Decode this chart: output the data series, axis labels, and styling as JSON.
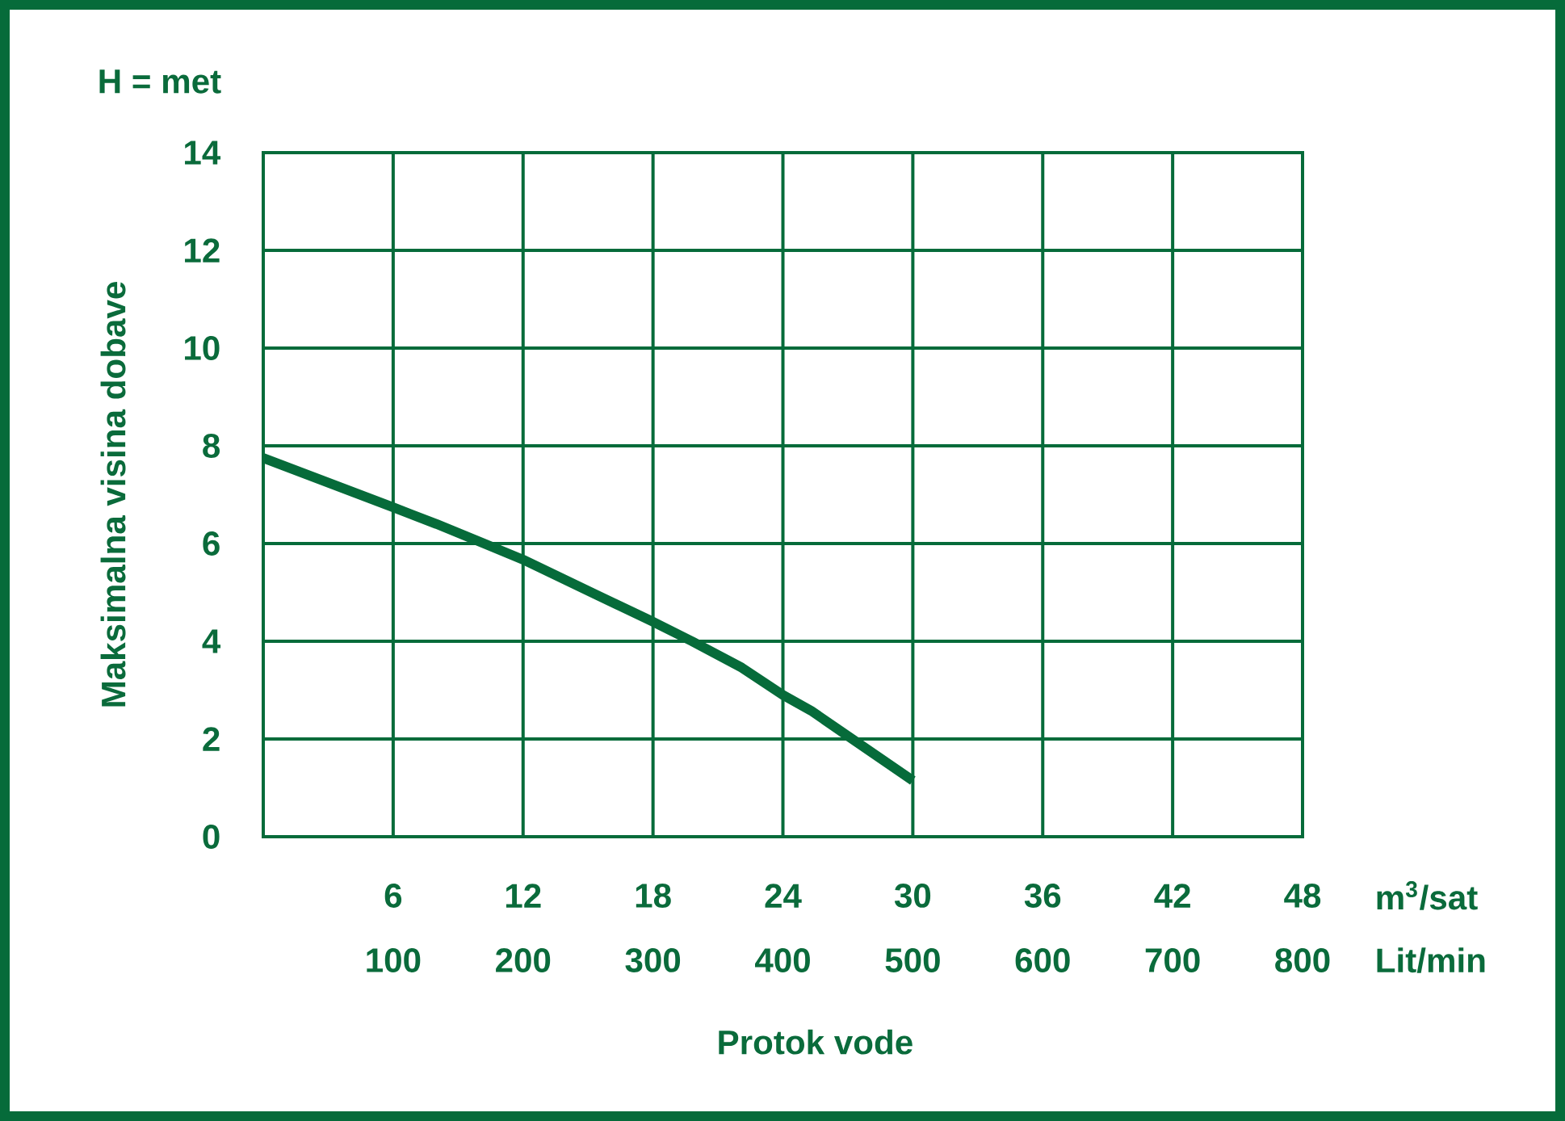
{
  "chart_data": {
    "type": "line",
    "xlabel": "Protok vode",
    "ylabel": "Maksimalna visina dobave",
    "annotations": [
      "H = met",
      "m$^{3}$/sat",
      "Lit/min"
    ],
    "x": [
      0,
      6,
      8,
      10.2,
      12,
      15.3,
      18,
      19.8,
      22.1,
      24,
      25.3,
      27.2,
      30
    ],
    "values": [
      7.75,
      6.74,
      6.4,
      6.0,
      5.67,
      4.97,
      4.4,
      4.0,
      3.46,
      2.9,
      2.58,
      2.0,
      1.15
    ],
    "color": "#066b3a",
    "line_style": "solid",
    "marker": "none",
    "xlim": [
      0,
      48
    ],
    "xticks": [
      6,
      12,
      18,
      24,
      30,
      36,
      42,
      48
    ],
    "x2lim": [
      0,
      800
    ],
    "x2ticks": [
      100,
      200,
      300,
      400,
      500,
      600,
      700,
      800
    ],
    "ylim": [
      0,
      14
    ],
    "yticks": [
      0,
      2,
      4,
      6,
      8,
      10,
      12,
      14
    ],
    "grid": true
  }
}
